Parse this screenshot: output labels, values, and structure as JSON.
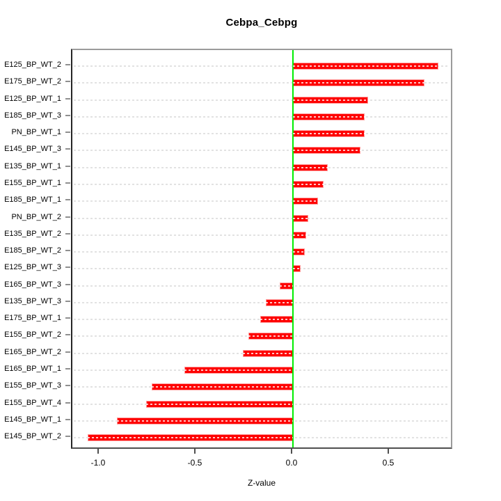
{
  "chart_data": {
    "type": "bar",
    "orientation": "horizontal",
    "title": "Cebpa_Cebpg",
    "xlabel": "Z-value",
    "ylabel": "",
    "xlim": [
      -1.14,
      0.83
    ],
    "x_ticks": [
      {
        "value": -1.0,
        "label": "-1.0"
      },
      {
        "value": -0.5,
        "label": "-0.5"
      },
      {
        "value": 0.0,
        "label": "0.0"
      },
      {
        "value": 0.5,
        "label": "0.5"
      }
    ],
    "grid": "horizontal-dashed",
    "legend": "none",
    "zero_reference_line": 0.0,
    "categories": [
      "E125_BP_WT_2",
      "E175_BP_WT_2",
      "E125_BP_WT_1",
      "E185_BP_WT_3",
      "PN_BP_WT_1",
      "E145_BP_WT_3",
      "E135_BP_WT_1",
      "E155_BP_WT_1",
      "E185_BP_WT_1",
      "PN_BP_WT_2",
      "E135_BP_WT_2",
      "E185_BP_WT_2",
      "E125_BP_WT_3",
      "E165_BP_WT_3",
      "E135_BP_WT_3",
      "E175_BP_WT_1",
      "E155_BP_WT_2",
      "E165_BP_WT_2",
      "E165_BP_WT_1",
      "E155_BP_WT_3",
      "E155_BP_WT_4",
      "E145_BP_WT_1",
      "E145_BP_WT_2"
    ],
    "values": [
      0.75,
      0.68,
      0.39,
      0.37,
      0.37,
      0.35,
      0.18,
      0.16,
      0.13,
      0.08,
      0.07,
      0.06,
      0.04,
      -0.07,
      -0.14,
      -0.17,
      -0.23,
      -0.26,
      -0.56,
      -0.73,
      -0.76,
      -0.91,
      -1.06
    ],
    "colors": {
      "bar": "#fe0000",
      "bar_edge": "#ff9a9a",
      "zero_line": "#00ee00",
      "grid_line": "#e2e2e2",
      "box_top_right": "#9b9b9b",
      "box_left": "#262626",
      "axis_bottom": "#4f4f4f"
    }
  }
}
